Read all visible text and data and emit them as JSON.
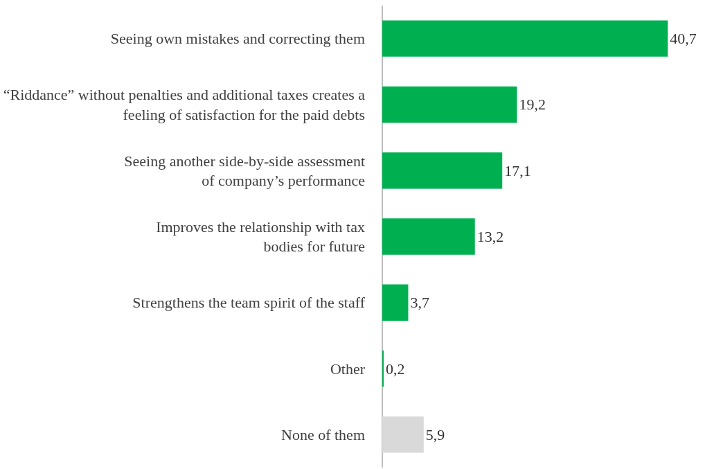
{
  "chart_data": {
    "type": "bar",
    "orientation": "horizontal",
    "tick_labels": "y",
    "categories": [
      "Seeing own mistakes and correcting them",
      "“Riddance” without penalties and additional taxes creates a feeling of satisfaction for the paid debts",
      "Seeing another side-by-side assessment of company’s performance",
      "Improves the relationship with tax bodies for future",
      "Strengthens the team spirit of the staff",
      "Other",
      "None of them"
    ],
    "values": [
      40.7,
      19.2,
      17.1,
      13.2,
      3.7,
      0.2,
      5.9
    ],
    "value_labels": [
      "40,7",
      "19,2",
      "17,1",
      "13,2",
      "3,7",
      "0,2",
      "5,9"
    ],
    "colors": [
      "#00b050",
      "#00b050",
      "#00b050",
      "#00b050",
      "#00b050",
      "#00b050",
      "#d9d9d9"
    ],
    "grid": false,
    "legend": false
  }
}
